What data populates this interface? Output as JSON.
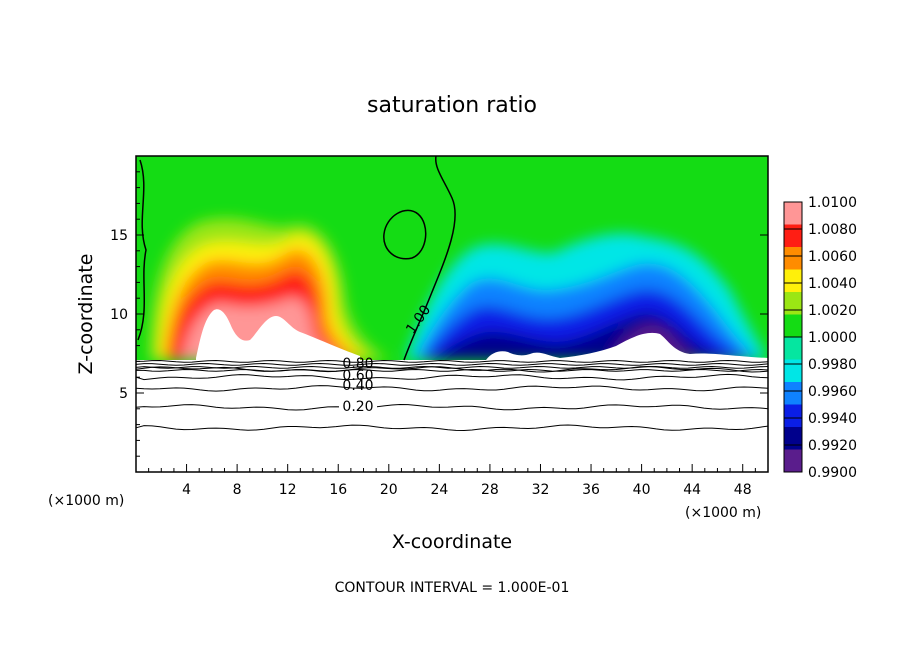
{
  "chart_data": {
    "type": "heatmap",
    "title": "saturation ratio",
    "xlabel": "X-coordinate",
    "ylabel": "Z-coordinate",
    "x_unit_left": "(×1000 m)",
    "x_unit_right": "(×1000 m)",
    "footer": "CONTOUR INTERVAL = 1.000E-01",
    "xlim": [
      0,
      50
    ],
    "ylim": [
      0,
      20
    ],
    "x_ticks": [
      4,
      8,
      12,
      16,
      20,
      24,
      28,
      32,
      36,
      40,
      44,
      48
    ],
    "x_tick_labels": [
      "4",
      "8",
      "12",
      "16",
      "20",
      "24",
      "28",
      "32",
      "36",
      "40",
      "44",
      "48"
    ],
    "y_ticks": [
      5,
      10,
      15
    ],
    "y_tick_labels": [
      "5",
      "10",
      "15"
    ],
    "colorbar": {
      "levels": [
        0.99,
        0.992,
        0.994,
        0.996,
        0.998,
        1.0,
        1.002,
        1.004,
        1.006,
        1.008,
        1.01
      ],
      "labels": [
        "0.9900",
        "0.9920",
        "0.9940",
        "0.9960",
        "0.9980",
        "1.0000",
        "1.0020",
        "1.0040",
        "1.0060",
        "1.0080",
        "1.0100"
      ],
      "colors": [
        "#5a1d8c",
        "#00008c",
        "#0a1ee6",
        "#0f82ff",
        "#00e6e6",
        "#05e6a0",
        "#14dc14",
        "#9be614",
        "#fff00a",
        "#ff8c00",
        "#ff1e14",
        "#ff9696"
      ]
    },
    "surface_height": 7.0,
    "contour_lines": [
      {
        "value": 1.0,
        "label": "1.00"
      },
      {
        "value": 0.8,
        "label": "0.80"
      },
      {
        "value": 0.6,
        "label": "0.60"
      },
      {
        "value": 0.4,
        "label": "0.40"
      },
      {
        "value": 0.2,
        "label": "0.20"
      }
    ],
    "contour_heights": [
      {
        "value": 0.2,
        "z": 4.1
      },
      {
        "value": 0.4,
        "z": 5.3
      },
      {
        "value": 0.6,
        "z": 6.0
      },
      {
        "value": 0.8,
        "z": 6.5
      },
      {
        "value": 0.1,
        "z": 2.8
      }
    ],
    "features": [
      {
        "name": "supersaturated-core-west",
        "x": 6.5,
        "z": 11.0,
        "peak": 1.0095
      },
      {
        "name": "supersaturated-core-mid",
        "x": 12.5,
        "z": 11.5,
        "peak": 1.009
      },
      {
        "name": "subsaturated-core-east",
        "x": 40.5,
        "z": 10.5,
        "peak": 0.9905
      },
      {
        "name": "subsaturated-core-center",
        "x": 27.5,
        "z": 9.0,
        "peak": 0.9925
      }
    ]
  }
}
